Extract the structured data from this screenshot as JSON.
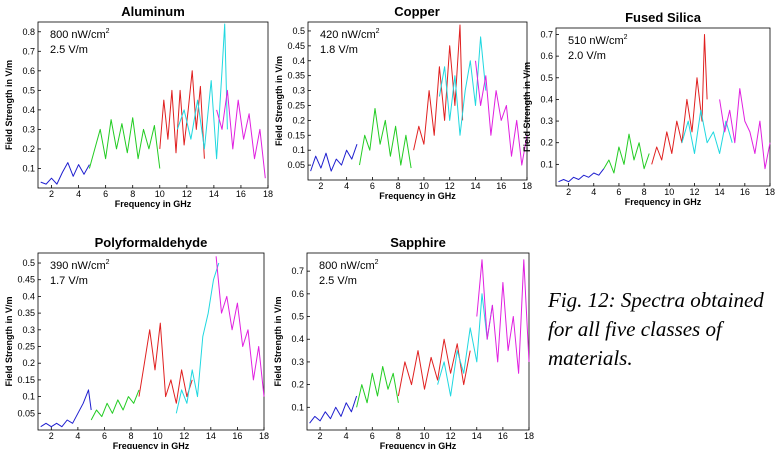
{
  "caption": "Fig. 12:  Spectra obtained for all five classes of materials.",
  "chart_data": [
    {
      "type": "line",
      "title": "Aluminum",
      "xlabel": "Frequency in GHz",
      "ylabel": "Field Strength in V/m",
      "xlim": [
        1,
        18
      ],
      "ylim": [
        0,
        0.85
      ],
      "xticks": [
        "2",
        "4",
        "6",
        "8",
        "10",
        "12",
        "14",
        "16",
        "18"
      ],
      "yticks": [
        "0.1",
        "0.2",
        "0.3",
        "0.4",
        "0.5",
        "0.6",
        "0.7",
        "0.8"
      ],
      "annotation": {
        "power": "800 nW/cm",
        "sup": "2",
        "field": "2.5 V/m"
      },
      "series": [
        {
          "color": "#1f1fcf",
          "x": [
            1.2,
            1.6,
            2.0,
            2.4,
            2.8,
            3.2,
            3.6,
            4.0,
            4.4,
            4.8
          ],
          "y": [
            0.03,
            0.02,
            0.05,
            0.02,
            0.08,
            0.13,
            0.06,
            0.12,
            0.07,
            0.12
          ]
        },
        {
          "color": "#22cc22",
          "x": [
            4.8,
            5.2,
            5.6,
            6.0,
            6.4,
            6.8,
            7.2,
            7.6,
            8.0,
            8.4,
            8.8,
            9.2,
            9.6,
            10.0
          ],
          "y": [
            0.1,
            0.2,
            0.3,
            0.15,
            0.35,
            0.2,
            0.33,
            0.18,
            0.36,
            0.15,
            0.3,
            0.2,
            0.32,
            0.1
          ]
        },
        {
          "color": "#e02020",
          "x": [
            10.0,
            10.3,
            10.6,
            10.9,
            11.2,
            11.5,
            11.8,
            12.1,
            12.4,
            12.7,
            13.0,
            13.3
          ],
          "y": [
            0.2,
            0.45,
            0.25,
            0.5,
            0.18,
            0.5,
            0.22,
            0.4,
            0.6,
            0.3,
            0.52,
            0.15
          ]
        },
        {
          "color": "#20d8e0",
          "x": [
            11.3,
            11.8,
            12.3,
            12.8,
            13.3,
            13.8,
            14.2,
            14.6,
            14.8,
            15.0
          ],
          "y": [
            0.3,
            0.4,
            0.25,
            0.45,
            0.2,
            0.55,
            0.15,
            0.6,
            0.84,
            0.3
          ]
        },
        {
          "color": "#e020e0",
          "x": [
            14.2,
            14.6,
            15.0,
            15.4,
            15.8,
            16.2,
            16.6,
            17.0,
            17.4,
            17.8
          ],
          "y": [
            0.4,
            0.3,
            0.5,
            0.2,
            0.45,
            0.25,
            0.38,
            0.15,
            0.3,
            0.05
          ]
        }
      ]
    },
    {
      "type": "line",
      "title": "Copper",
      "xlabel": "Frequency in GHz",
      "ylabel": "Field Strength in V/m",
      "xlim": [
        1,
        18
      ],
      "ylim": [
        0,
        0.53
      ],
      "xticks": [
        "2",
        "4",
        "6",
        "8",
        "10",
        "12",
        "14",
        "16",
        "18"
      ],
      "yticks": [
        "0.05",
        "0.1",
        "0.15",
        "0.2",
        "0.25",
        "0.3",
        "0.35",
        "0.4",
        "0.45",
        "0.5"
      ],
      "annotation": {
        "power": "420 nW/cm",
        "sup": "2",
        "field": "1.8 V/m"
      },
      "series": [
        {
          "color": "#1f1fcf",
          "x": [
            1.2,
            1.6,
            2.0,
            2.4,
            2.8,
            3.2,
            3.6,
            4.0,
            4.4,
            4.8
          ],
          "y": [
            0.03,
            0.08,
            0.04,
            0.09,
            0.03,
            0.07,
            0.05,
            0.1,
            0.07,
            0.12
          ]
        },
        {
          "color": "#22cc22",
          "x": [
            5.0,
            5.4,
            5.8,
            6.2,
            6.6,
            7.0,
            7.4,
            7.8,
            8.2,
            8.6,
            9.0
          ],
          "y": [
            0.05,
            0.15,
            0.1,
            0.24,
            0.12,
            0.2,
            0.08,
            0.18,
            0.05,
            0.15,
            0.04
          ]
        },
        {
          "color": "#e02020",
          "x": [
            9.2,
            9.6,
            10.0,
            10.4,
            10.8,
            11.2,
            11.6,
            12.0,
            12.4,
            12.8,
            13.0
          ],
          "y": [
            0.1,
            0.18,
            0.12,
            0.3,
            0.15,
            0.38,
            0.2,
            0.45,
            0.25,
            0.52,
            0.2
          ]
        },
        {
          "color": "#20d8e0",
          "x": [
            11.2,
            11.6,
            12.0,
            12.4,
            12.8,
            13.2,
            13.6,
            14.0,
            14.4,
            14.8
          ],
          "y": [
            0.28,
            0.38,
            0.2,
            0.35,
            0.15,
            0.3,
            0.4,
            0.25,
            0.48,
            0.3
          ]
        },
        {
          "color": "#e020e0",
          "x": [
            14.0,
            14.4,
            14.8,
            15.2,
            15.6,
            16.0,
            16.4,
            16.8,
            17.2,
            17.6,
            18.0
          ],
          "y": [
            0.4,
            0.25,
            0.35,
            0.15,
            0.3,
            0.2,
            0.25,
            0.08,
            0.2,
            0.05,
            0.15
          ]
        }
      ]
    },
    {
      "type": "line",
      "title": "Fused Silica",
      "xlabel": "Frequency in GHz",
      "ylabel": "Field Strength in V/m",
      "xlim": [
        1,
        18
      ],
      "ylim": [
        0,
        0.73
      ],
      "xticks": [
        "2",
        "4",
        "6",
        "8",
        "10",
        "12",
        "14",
        "16",
        "18"
      ],
      "yticks": [
        "0.1",
        "0.2",
        "0.3",
        "0.4",
        "0.5",
        "0.6",
        "0.7"
      ],
      "annotation": {
        "power": "510 nW/cm",
        "sup": "2",
        "field": "2.0 V/m"
      },
      "series": [
        {
          "color": "#1f1fcf",
          "x": [
            1.2,
            1.6,
            2.0,
            2.4,
            2.8,
            3.2,
            3.6,
            4.0,
            4.4,
            4.8
          ],
          "y": [
            0.02,
            0.03,
            0.02,
            0.04,
            0.03,
            0.05,
            0.04,
            0.06,
            0.05,
            0.08
          ]
        },
        {
          "color": "#22cc22",
          "x": [
            4.8,
            5.2,
            5.6,
            6.0,
            6.4,
            6.8,
            7.2,
            7.6,
            8.0,
            8.4
          ],
          "y": [
            0.08,
            0.12,
            0.06,
            0.18,
            0.1,
            0.24,
            0.12,
            0.2,
            0.08,
            0.15
          ]
        },
        {
          "color": "#e02020",
          "x": [
            8.6,
            9.0,
            9.4,
            9.8,
            10.2,
            10.6,
            11.0,
            11.4,
            11.8,
            12.2,
            12.6,
            12.8,
            13.0
          ],
          "y": [
            0.1,
            0.18,
            0.12,
            0.25,
            0.15,
            0.3,
            0.2,
            0.4,
            0.25,
            0.5,
            0.3,
            0.7,
            0.4
          ]
        },
        {
          "color": "#20d8e0",
          "x": [
            11.0,
            11.5,
            12.0,
            12.5,
            13.0,
            13.5,
            14.0,
            14.5,
            15.0
          ],
          "y": [
            0.2,
            0.3,
            0.15,
            0.35,
            0.2,
            0.25,
            0.15,
            0.3,
            0.2
          ]
        },
        {
          "color": "#e020e0",
          "x": [
            14.0,
            14.4,
            14.8,
            15.2,
            15.6,
            16.0,
            16.4,
            16.8,
            17.2,
            17.6,
            18.0
          ],
          "y": [
            0.4,
            0.25,
            0.35,
            0.2,
            0.45,
            0.3,
            0.25,
            0.15,
            0.3,
            0.08,
            0.2
          ]
        }
      ]
    },
    {
      "type": "line",
      "title": "Polyformaldehyde",
      "xlabel": "Frequency in GHz",
      "ylabel": "Field Strength in V/m",
      "xlim": [
        1,
        18
      ],
      "ylim": [
        0,
        0.53
      ],
      "xticks": [
        "2",
        "4",
        "6",
        "8",
        "10",
        "12",
        "14",
        "16",
        "18"
      ],
      "yticks": [
        "0.05",
        "0.1",
        "0.15",
        "0.2",
        "0.25",
        "0.3",
        "0.35",
        "0.4",
        "0.45",
        "0.5"
      ],
      "annotation": {
        "power": "390 nW/cm",
        "sup": "2",
        "field": "1.7 V/m"
      },
      "series": [
        {
          "color": "#1f1fcf",
          "x": [
            1.2,
            1.6,
            2.0,
            2.4,
            2.8,
            3.2,
            3.6,
            4.0,
            4.4,
            4.8,
            5.0
          ],
          "y": [
            0.01,
            0.02,
            0.01,
            0.02,
            0.01,
            0.03,
            0.02,
            0.05,
            0.08,
            0.12,
            0.06
          ]
        },
        {
          "color": "#22cc22",
          "x": [
            5.0,
            5.4,
            5.8,
            6.2,
            6.6,
            7.0,
            7.4,
            7.8,
            8.2,
            8.6
          ],
          "y": [
            0.03,
            0.06,
            0.04,
            0.08,
            0.05,
            0.09,
            0.06,
            0.1,
            0.08,
            0.12
          ]
        },
        {
          "color": "#e02020",
          "x": [
            8.6,
            9.0,
            9.4,
            9.8,
            10.2,
            10.6,
            11.0,
            11.4,
            11.8,
            12.2,
            12.6
          ],
          "y": [
            0.1,
            0.2,
            0.3,
            0.18,
            0.32,
            0.1,
            0.15,
            0.08,
            0.18,
            0.1,
            0.15
          ]
        },
        {
          "color": "#20d8e0",
          "x": [
            11.4,
            11.8,
            12.2,
            12.6,
            13.0,
            13.4,
            13.8,
            14.2,
            14.6
          ],
          "y": [
            0.05,
            0.12,
            0.08,
            0.18,
            0.1,
            0.28,
            0.35,
            0.45,
            0.5
          ]
        },
        {
          "color": "#e020e0",
          "x": [
            14.4,
            14.8,
            15.2,
            15.6,
            16.0,
            16.4,
            16.8,
            17.2,
            17.6,
            18.0
          ],
          "y": [
            0.52,
            0.35,
            0.4,
            0.3,
            0.38,
            0.25,
            0.3,
            0.15,
            0.25,
            0.1
          ]
        }
      ]
    },
    {
      "type": "line",
      "title": "Sapphire",
      "xlabel": "Frequency in GHz",
      "ylabel": "Field Strength in V/m",
      "xlim": [
        1,
        18
      ],
      "ylim": [
        0,
        0.78
      ],
      "xticks": [
        "2",
        "4",
        "6",
        "8",
        "10",
        "12",
        "14",
        "16",
        "18"
      ],
      "yticks": [
        "0.1",
        "0.2",
        "0.3",
        "0.4",
        "0.5",
        "0.6",
        "0.7"
      ],
      "annotation": {
        "power": "800 nW/cm",
        "sup": "2",
        "field": "2.5 V/m"
      },
      "series": [
        {
          "color": "#1f1fcf",
          "x": [
            1.2,
            1.6,
            2.0,
            2.4,
            2.8,
            3.2,
            3.6,
            4.0,
            4.4,
            4.8
          ],
          "y": [
            0.03,
            0.06,
            0.04,
            0.08,
            0.05,
            0.1,
            0.06,
            0.12,
            0.08,
            0.15
          ]
        },
        {
          "color": "#22cc22",
          "x": [
            4.8,
            5.2,
            5.6,
            6.0,
            6.4,
            6.8,
            7.2,
            7.6,
            8.0
          ],
          "y": [
            0.1,
            0.2,
            0.12,
            0.25,
            0.15,
            0.28,
            0.18,
            0.25,
            0.12
          ]
        },
        {
          "color": "#e02020",
          "x": [
            8.0,
            8.5,
            9.0,
            9.5,
            10.0,
            10.5,
            11.0,
            11.5,
            12.0,
            12.5,
            13.0,
            13.5
          ],
          "y": [
            0.15,
            0.3,
            0.2,
            0.35,
            0.18,
            0.32,
            0.22,
            0.4,
            0.25,
            0.38,
            0.2,
            0.35
          ]
        },
        {
          "color": "#20d8e0",
          "x": [
            11.0,
            11.5,
            12.0,
            12.5,
            13.0,
            13.5,
            14.0,
            14.4,
            14.8,
            15.2
          ],
          "y": [
            0.2,
            0.3,
            0.15,
            0.35,
            0.25,
            0.45,
            0.3,
            0.6,
            0.4,
            0.55
          ]
        },
        {
          "color": "#e020e0",
          "x": [
            14.0,
            14.4,
            14.8,
            15.2,
            15.6,
            16.0,
            16.4,
            16.8,
            17.2,
            17.6,
            18.0
          ],
          "y": [
            0.5,
            0.75,
            0.4,
            0.55,
            0.3,
            0.65,
            0.35,
            0.5,
            0.25,
            0.75,
            0.3
          ]
        }
      ]
    }
  ]
}
